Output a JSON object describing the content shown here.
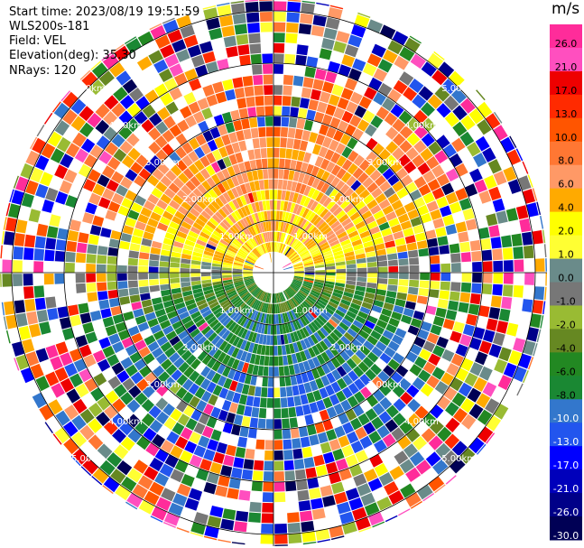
{
  "header": {
    "start_time": "Start time: 2023/08/19 19:51:59",
    "instrument": "WLS200s-181",
    "field": "Field: VEL",
    "elevation": "Elevation(deg): 35.30",
    "nrays": "NRays: 120"
  },
  "colorbar": {
    "unit": "m/s",
    "ticks": [
      "26.0",
      "21.0",
      "17.0",
      "13.0",
      "10.0",
      "8.0",
      "6.0",
      "4.0",
      "2.0",
      "1.0",
      "0.0",
      "-1.0",
      "-2.0",
      "-4.0",
      "-6.0",
      "-8.0",
      "-10.0",
      "-13.0",
      "-17.0",
      "-21.0",
      "-26.0",
      "-30.0"
    ],
    "colors": [
      "#ff2c9a",
      "#ff4fbf",
      "#ee0000",
      "#ff2a00",
      "#ff5500",
      "#ff7733",
      "#ff9966",
      "#ffaa00",
      "#ffff00",
      "#ffff33",
      "#6a8b8a",
      "#777777",
      "#99bb33",
      "#668822",
      "#228822",
      "#1a8833",
      "#3377cc",
      "#2255ee",
      "#0000ff",
      "#0000bb",
      "#000088",
      "#000055"
    ]
  },
  "chart_data": {
    "type": "heatmap",
    "title": "",
    "field": "VEL",
    "units": "m/s",
    "nrays": 120,
    "value_range": [
      -30,
      30
    ],
    "range_rings_km": [
      1.0,
      2.0,
      3.0,
      4.0,
      5.0
    ],
    "ring_labels": [
      "1.00km",
      "2.00km",
      "3.00km",
      "4.00km",
      "5.00km"
    ],
    "pattern": "near-range: positive (yellow/orange) toward north, negative (green/blue) toward south; beyond ~4 km: noise"
  }
}
